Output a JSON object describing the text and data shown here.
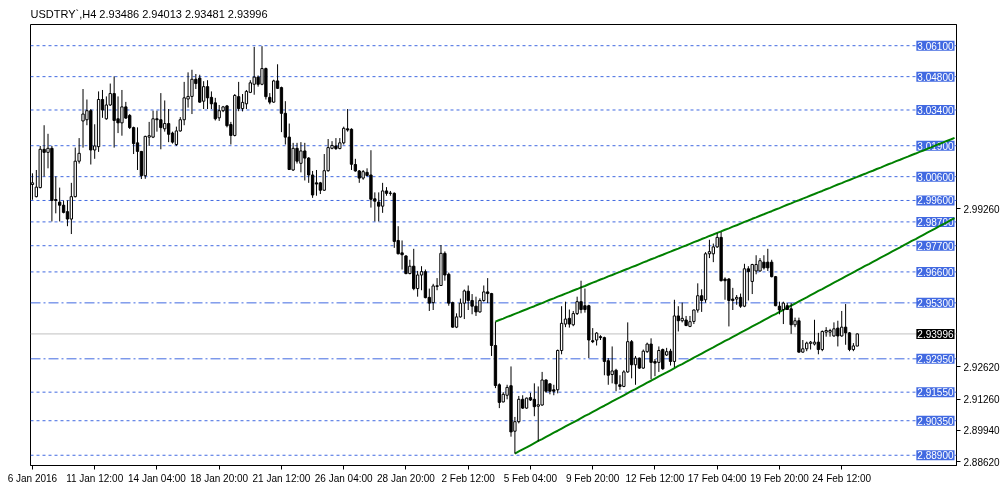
{
  "chart_data": {
    "type": "candlestick",
    "title": "USDTRY`,H4 2.93486 2.94013 2.93481 2.93996",
    "color": "#000000",
    "categories": [
      "6 Jan 2016",
      null,
      null,
      null,
      null,
      null,
      null,
      null,
      null,
      null,
      null,
      null,
      null,
      null,
      null,
      null,
      "11 Jan 12:00",
      null,
      null,
      null,
      null,
      null,
      null,
      null,
      null,
      null,
      null,
      null,
      null,
      null,
      null,
      null,
      "14 Jan 04:00",
      null,
      null,
      null,
      null,
      null,
      null,
      null,
      null,
      null,
      null,
      null,
      null,
      null,
      null,
      null,
      "18 Jan 20:00",
      null,
      null,
      null,
      null,
      null,
      null,
      null,
      null,
      null,
      null,
      null,
      null,
      null,
      null,
      null,
      "21 Jan 12:00",
      null,
      null,
      null,
      null,
      null,
      null,
      null,
      null,
      null,
      null,
      null,
      null,
      null,
      null,
      null,
      "26 Jan 04:00",
      null,
      null,
      null,
      null,
      null,
      null,
      null,
      null,
      null,
      null,
      null,
      null,
      null,
      null,
      null,
      "28 Jan 20:00",
      null,
      null,
      null,
      null,
      null,
      null,
      null,
      null,
      null,
      null,
      null,
      null,
      null,
      null,
      null,
      "2 Feb 12:00",
      null,
      null,
      null,
      null,
      null,
      null,
      null,
      null,
      null,
      null,
      null,
      null,
      null,
      null,
      null,
      "5 Feb 04:00",
      null,
      null,
      null,
      null,
      null,
      null,
      null,
      null,
      null,
      null,
      null,
      null,
      null,
      null,
      null,
      "9 Feb 20:00",
      null,
      null,
      null,
      null,
      null,
      null,
      null,
      null,
      null,
      null,
      null,
      null,
      null,
      null,
      null,
      "12 Feb 12:00",
      null,
      null,
      null,
      null,
      null,
      null,
      null,
      null,
      null,
      null,
      null,
      null,
      null,
      null,
      null,
      "17 Feb 04:00",
      null,
      null,
      null,
      null,
      null,
      null,
      null,
      null,
      null,
      null,
      null,
      null,
      null,
      null,
      null,
      "19 Feb 20:00",
      null,
      null,
      null,
      null,
      null,
      null,
      null,
      null,
      null,
      null,
      null,
      null,
      null,
      null,
      null,
      "24 Feb 12:00",
      null,
      null,
      null,
      null,
      null,
      null,
      null,
      null,
      null,
      null,
      null,
      null,
      null,
      null,
      null,
      null,
      null,
      null,
      null,
      null,
      null,
      null,
      null,
      null,
      null,
      null,
      null,
      null,
      null
    ],
    "ohlc": [
      [
        3.0027,
        3.0074,
        2.9963,
        3.0034
      ],
      [
        2.9976,
        3.0088,
        2.9973,
        3.0016
      ],
      [
        3.0014,
        3.0189,
        3.0011,
        3.0175
      ],
      [
        3.0175,
        3.0276,
        3.0061,
        3.0162
      ],
      [
        3.0162,
        3.024,
        3.0095,
        3.0179
      ],
      [
        3.0179,
        3.0189,
        2.9872,
        2.996
      ],
      [
        2.9964,
        3.0061,
        2.9906,
        2.996
      ],
      [
        2.9953,
        3.0014,
        2.9872,
        2.994
      ],
      [
        2.994,
        2.996,
        2.9906,
        2.991
      ],
      [
        2.9913,
        2.996,
        2.9852,
        2.9882
      ],
      [
        2.9882,
        3.0034,
        2.9819,
        2.9976
      ],
      [
        2.9976,
        3.0182,
        2.9973,
        3.0125
      ],
      [
        3.0125,
        3.0222,
        3.0115,
        3.0158
      ],
      [
        3.0294,
        3.0428,
        3.0182,
        3.0323
      ],
      [
        3.0299,
        3.0384,
        3.0276,
        3.0337
      ],
      [
        3.0337,
        3.0344,
        3.0111,
        3.0172
      ],
      [
        3.0172,
        3.028,
        3.0135,
        3.0189
      ],
      [
        3.0186,
        3.0418,
        3.0164,
        3.0384
      ],
      [
        3.0384,
        3.0424,
        3.0307,
        3.034
      ],
      [
        3.0303,
        3.0397,
        3.0299,
        3.0361
      ],
      [
        3.0361,
        3.0451,
        3.0357,
        3.0409
      ],
      [
        3.0409,
        3.0481,
        3.0182,
        3.0296
      ],
      [
        3.0303,
        3.0397,
        3.0243,
        3.0286
      ],
      [
        3.0286,
        3.0424,
        3.0232,
        3.0353
      ],
      [
        3.0353,
        3.0374,
        3.0303,
        3.0306
      ],
      [
        3.0317,
        3.0323,
        3.026,
        3.0266
      ],
      [
        3.0266,
        3.027,
        3.0155,
        3.0199
      ],
      [
        3.0202,
        3.0267,
        3.0088,
        3.0166
      ],
      [
        3.0166,
        3.0168,
        3.005,
        3.0064
      ],
      [
        3.0064,
        3.0232,
        3.0051,
        3.0229
      ],
      [
        3.0226,
        3.029,
        3.0189,
        3.0232
      ],
      [
        3.0226,
        3.0337,
        3.0222,
        3.0303
      ],
      [
        3.0303,
        3.0337,
        3.0249,
        3.0299
      ],
      [
        3.0299,
        3.0411,
        3.0175,
        3.0266
      ],
      [
        3.0261,
        3.038,
        3.0249,
        3.0283
      ],
      [
        3.0283,
        3.0344,
        3.0205,
        3.0238
      ],
      [
        3.0243,
        3.0249,
        3.0199,
        3.0205
      ],
      [
        3.0195,
        3.027,
        3.0189,
        3.0252
      ],
      [
        3.0252,
        3.031,
        3.0249,
        3.0299
      ],
      [
        3.0299,
        3.0458,
        3.0276,
        3.0391
      ],
      [
        3.0386,
        3.0498,
        3.035,
        3.0397
      ],
      [
        3.0397,
        3.0509,
        3.0323,
        3.0469
      ],
      [
        3.0469,
        3.0491,
        3.0428,
        3.0451
      ],
      [
        3.0474,
        3.0488,
        3.037,
        3.0373
      ],
      [
        3.0377,
        3.0461,
        3.0344,
        3.0438
      ],
      [
        3.0438,
        3.0465,
        3.0344,
        3.0391
      ],
      [
        3.0393,
        3.0418,
        3.0344,
        3.0366
      ],
      [
        3.037,
        3.0391,
        3.0296,
        3.0303
      ],
      [
        3.0307,
        3.0361,
        3.0294,
        3.0337
      ],
      [
        3.0337,
        3.0357,
        3.0331,
        3.0353
      ],
      [
        3.0357,
        3.0361,
        3.0267,
        3.0274
      ],
      [
        3.0279,
        3.029,
        3.0195,
        3.0233
      ],
      [
        3.0233,
        3.0407,
        3.0229,
        3.0401
      ],
      [
        3.0396,
        3.0458,
        3.0335,
        3.0346
      ],
      [
        3.0346,
        3.0407,
        3.0334,
        3.0372
      ],
      [
        3.0366,
        3.0424,
        3.0344,
        3.0418
      ],
      [
        3.0414,
        3.0465,
        3.0411,
        3.0454
      ],
      [
        3.0448,
        3.0605,
        3.0404,
        3.0478
      ],
      [
        3.0478,
        3.0485,
        3.0438,
        3.0448
      ],
      [
        3.0448,
        3.0608,
        3.0444,
        3.0514
      ],
      [
        3.0514,
        3.0518,
        3.0384,
        3.0396
      ],
      [
        3.0393,
        3.0411,
        3.0364,
        3.0373
      ],
      [
        3.0373,
        3.0467,
        3.037,
        3.0462
      ],
      [
        3.0462,
        3.0532,
        3.0428,
        3.0431
      ],
      [
        3.0434,
        3.0438,
        3.0247,
        3.0326
      ],
      [
        3.0326,
        3.0377,
        3.0195,
        3.0226
      ],
      [
        3.0226,
        3.0283,
        3.0088,
        3.009
      ],
      [
        3.0088,
        3.0202,
        3.0084,
        3.0179
      ],
      [
        3.0179,
        3.0202,
        3.0115,
        3.0125
      ],
      [
        3.0116,
        3.0205,
        3.0078,
        3.0168
      ],
      [
        3.0168,
        3.0202,
        3.0044,
        3.0138
      ],
      [
        3.0138,
        3.0142,
        3.0034,
        3.0067
      ],
      [
        3.0067,
        3.0084,
        2.9971,
        2.9983
      ],
      [
        3.0034,
        3.0088,
        2.998,
        3.0029
      ],
      [
        3.0034,
        3.0038,
        2.9987,
        3.0003
      ],
      [
        3.0003,
        3.0155,
        3.0,
        3.0085
      ],
      [
        3.0085,
        3.0218,
        3.0081,
        3.0182
      ],
      [
        3.0179,
        3.0209,
        3.0175,
        3.0191
      ],
      [
        3.0189,
        3.0222,
        3.0172,
        3.0178
      ],
      [
        3.0178,
        3.0222,
        3.0175,
        3.0202
      ],
      [
        3.0202,
        3.027,
        3.0195,
        3.0263
      ],
      [
        3.0261,
        3.0344,
        3.0249,
        3.0256
      ],
      [
        3.0259,
        3.0263,
        3.0088,
        3.0112
      ],
      [
        3.0111,
        3.0135,
        3.0081,
        3.0084
      ],
      [
        3.0084,
        3.0088,
        3.0034,
        3.0054
      ],
      [
        3.0054,
        3.0088,
        3.0047,
        3.0081
      ],
      [
        3.0078,
        3.0095,
        3.0061,
        3.0065
      ],
      [
        3.0067,
        3.0171,
        2.993,
        2.9965
      ],
      [
        2.9967,
        2.9994,
        2.9872,
        2.9957
      ],
      [
        2.9953,
        2.9994,
        2.9872,
        2.9936
      ],
      [
        2.9936,
        3.0034,
        2.9908,
        3.0
      ],
      [
        3.0,
        3.0016,
        2.998,
        2.999
      ],
      [
        2.9991,
        3.0,
        2.998,
        2.999
      ],
      [
        2.999,
        2.9994,
        2.9761,
        2.9788
      ],
      [
        2.9792,
        2.9852,
        2.9734,
        2.9736
      ],
      [
        2.974,
        2.9792,
        2.967,
        2.9732
      ],
      [
        2.9727,
        2.973,
        2.965,
        2.9653
      ],
      [
        2.9653,
        2.9711,
        2.965,
        2.9684
      ],
      [
        2.9684,
        2.9757,
        2.9583,
        2.959
      ],
      [
        2.959,
        2.9664,
        2.9556,
        2.9647
      ],
      [
        2.9647,
        2.9684,
        2.9583,
        2.9661
      ],
      [
        2.9661,
        2.967,
        2.9549,
        2.9552
      ],
      [
        2.9553,
        2.959,
        2.9496,
        2.9529
      ],
      [
        2.9531,
        2.961,
        2.95,
        2.9601
      ],
      [
        2.9599,
        2.9634,
        2.9583,
        2.9602
      ],
      [
        2.9603,
        2.9773,
        2.9601,
        2.9738
      ],
      [
        2.9738,
        2.9746,
        2.9623,
        2.9647
      ],
      [
        2.965,
        2.9657,
        2.9518,
        2.9529
      ],
      [
        2.9531,
        2.9535,
        2.9426,
        2.9428
      ],
      [
        2.9428,
        2.9486,
        2.9424,
        2.9471
      ],
      [
        2.9471,
        2.9548,
        2.9468,
        2.9529
      ],
      [
        2.9529,
        2.9586,
        2.9462,
        2.958
      ],
      [
        2.9579,
        2.9603,
        2.95,
        2.954
      ],
      [
        2.954,
        2.9567,
        2.9482,
        2.9516
      ],
      [
        2.9516,
        2.9556,
        2.9475,
        2.9492
      ],
      [
        2.9492,
        2.9549,
        2.9489,
        2.954
      ],
      [
        2.954,
        2.9603,
        2.9535,
        2.9576
      ],
      [
        2.9576,
        2.9634,
        2.9529,
        2.9569
      ],
      [
        2.9569,
        2.9572,
        2.9307,
        2.9351
      ],
      [
        2.9351,
        2.9451,
        2.9172,
        2.9183
      ],
      [
        2.9186,
        2.9192,
        2.9088,
        2.9112
      ],
      [
        2.9114,
        2.9155,
        2.9112,
        2.9146
      ],
      [
        2.9142,
        2.9186,
        2.9125,
        2.9175
      ],
      [
        2.9182,
        2.9263,
        2.8968,
        2.8988
      ],
      [
        2.8991,
        2.9051,
        2.8897,
        2.9031
      ],
      [
        2.9031,
        2.9139,
        2.9024,
        2.9125
      ],
      [
        2.9125,
        2.9142,
        2.9085,
        2.9088
      ],
      [
        2.9088,
        2.9132,
        2.9085,
        2.913
      ],
      [
        2.9132,
        2.9152,
        2.9118,
        2.9122
      ],
      [
        2.9125,
        2.9192,
        2.9054,
        2.9094
      ],
      [
        2.9096,
        2.9179,
        2.8948,
        2.9102
      ],
      [
        2.9101,
        2.924,
        2.9098,
        2.9206
      ],
      [
        2.9206,
        2.9209,
        2.9152,
        2.9159
      ],
      [
        2.919,
        2.9192,
        2.9146,
        2.9159
      ],
      [
        2.9165,
        2.9186,
        2.9142,
        2.9159
      ],
      [
        2.9165,
        2.9334,
        2.915,
        2.933
      ],
      [
        2.933,
        2.9516,
        2.9314,
        2.9444
      ],
      [
        2.9441,
        2.9535,
        2.9428,
        2.9462
      ],
      [
        2.9465,
        2.9502,
        2.9426,
        2.9441
      ],
      [
        2.9438,
        2.9496,
        2.9432,
        2.9485
      ],
      [
        2.9485,
        2.9556,
        2.9479,
        2.9535
      ],
      [
        2.9535,
        2.9623,
        2.9486,
        2.9502
      ],
      [
        2.9518,
        2.959,
        2.9489,
        2.9502
      ],
      [
        2.9518,
        2.9522,
        2.9298,
        2.9374
      ],
      [
        2.9371,
        2.9424,
        2.9361,
        2.9367
      ],
      [
        2.9374,
        2.9407,
        2.9351,
        2.9403
      ],
      [
        2.9388,
        2.9394,
        2.9374,
        2.9384
      ],
      [
        2.9384,
        2.9388,
        2.9226,
        2.9284
      ],
      [
        2.9287,
        2.9298,
        2.9186,
        2.9226
      ],
      [
        2.9229,
        2.9347,
        2.9192,
        2.9244
      ],
      [
        2.9247,
        2.9253,
        2.9159,
        2.919
      ],
      [
        2.9186,
        2.9226,
        2.9165,
        2.9179
      ],
      [
        2.9179,
        2.9247,
        2.9176,
        2.924
      ],
      [
        2.924,
        2.9448,
        2.9236,
        2.9367
      ],
      [
        2.9367,
        2.9374,
        2.9213,
        2.927
      ],
      [
        2.927,
        2.9307,
        2.9186,
        2.9298
      ],
      [
        2.9298,
        2.93,
        2.9253,
        2.9256
      ],
      [
        2.9256,
        2.9334,
        2.9253,
        2.9327
      ],
      [
        2.9325,
        2.9363,
        2.932,
        2.9357
      ],
      [
        2.9357,
        2.9381,
        2.9209,
        2.928
      ],
      [
        2.9284,
        2.9294,
        2.9222,
        2.9277
      ],
      [
        2.928,
        2.9347,
        2.924,
        2.933
      ],
      [
        2.9334,
        2.9338,
        2.9249,
        2.9253
      ],
      [
        2.9311,
        2.9341,
        2.9307,
        2.9325
      ],
      [
        2.9327,
        2.9337,
        2.9267,
        2.9284
      ],
      [
        2.9284,
        2.9543,
        2.926,
        2.9475
      ],
      [
        2.9475,
        2.9516,
        2.941,
        2.9455
      ],
      [
        2.9455,
        2.9531,
        2.9448,
        2.9465
      ],
      [
        2.9458,
        2.9475,
        2.9432,
        2.9435
      ],
      [
        2.9431,
        2.9475,
        2.9428,
        2.9451
      ],
      [
        2.9452,
        2.9502,
        2.9441,
        2.95
      ],
      [
        2.95,
        2.9612,
        2.9489,
        2.956
      ],
      [
        2.956,
        2.9587,
        2.9492,
        2.954
      ],
      [
        2.9543,
        2.9743,
        2.9531,
        2.9736
      ],
      [
        2.9736,
        2.9795,
        2.9718,
        2.9745
      ],
      [
        2.9736,
        2.9779,
        2.9701,
        2.9765
      ],
      [
        2.9765,
        2.9823,
        2.9761,
        2.9805
      ],
      [
        2.9805,
        2.9828,
        2.962,
        2.9623
      ],
      [
        2.963,
        2.9637,
        2.9543,
        2.9623
      ],
      [
        2.963,
        2.9634,
        2.9431,
        2.954
      ],
      [
        2.9546,
        2.9593,
        2.95,
        2.954
      ],
      [
        2.9546,
        2.9563,
        2.9522,
        2.9553
      ],
      [
        2.9553,
        2.9569,
        2.9509,
        2.9516
      ],
      [
        2.9516,
        2.9694,
        2.9512,
        2.9673
      ],
      [
        2.9673,
        2.9684,
        2.954,
        2.9661
      ],
      [
        2.962,
        2.9694,
        2.9567,
        2.9691
      ],
      [
        2.9664,
        2.973,
        2.965,
        2.9691
      ],
      [
        2.9664,
        2.9718,
        2.9661,
        2.9707
      ],
      [
        2.9701,
        2.973,
        2.967,
        2.9677
      ],
      [
        2.9701,
        2.9757,
        2.9664,
        2.9677
      ],
      [
        2.9701,
        2.9711,
        2.9637,
        2.964
      ],
      [
        2.964,
        2.9643,
        2.9516,
        2.9518
      ],
      [
        2.9516,
        2.9535,
        2.9482,
        2.95
      ],
      [
        2.9502,
        2.9535,
        2.9441,
        2.9529
      ],
      [
        2.9518,
        2.9529,
        2.95,
        2.9502
      ],
      [
        2.9505,
        2.9529,
        2.94,
        2.9438
      ],
      [
        2.9438,
        2.9468,
        2.9428,
        2.9455
      ],
      [
        2.9455,
        2.9468,
        2.9321,
        2.9323
      ],
      [
        2.9323,
        2.9374,
        2.9321,
        2.9337
      ],
      [
        2.9337,
        2.9367,
        2.9327,
        2.9361
      ],
      [
        2.936,
        2.937,
        2.9334,
        2.9365
      ],
      [
        2.9357,
        2.9459,
        2.9351,
        2.9365
      ],
      [
        2.9365,
        2.9404,
        2.9314,
        2.9334
      ],
      [
        2.9334,
        2.9414,
        2.9327,
        2.941
      ],
      [
        2.9407,
        2.9428,
        2.9388,
        2.9414
      ],
      [
        2.9407,
        2.9421,
        2.9388,
        2.9414
      ],
      [
        2.9391,
        2.9448,
        2.9388,
        2.9421
      ],
      [
        2.9424,
        2.9455,
        2.9347,
        2.9391
      ],
      [
        2.9391,
        2.9496,
        2.9388,
        2.9428
      ],
      [
        2.9428,
        2.9525,
        2.9354,
        2.9404
      ],
      [
        2.9404,
        2.9407,
        2.9327,
        2.9334
      ],
      [
        2.9334,
        2.9361,
        2.9327,
        2.9349
      ],
      [
        2.93486,
        2.94013,
        2.93481,
        2.93996
      ],
      null,
      null,
      null,
      null,
      null,
      null,
      null,
      null,
      null,
      null,
      null,
      null,
      null,
      null,
      null,
      null,
      null,
      null,
      null,
      null,
      null,
      null,
      null,
      null,
      null
    ],
    "series": [
      {
        "type": "line",
        "color": "#008000",
        "values": [
          null,
          null,
          null,
          null,
          null,
          null,
          null,
          null,
          null,
          null,
          null,
          null,
          null,
          null,
          null,
          null,
          null,
          null,
          null,
          null,
          null,
          null,
          null,
          null,
          null,
          null,
          null,
          null,
          null,
          null,
          null,
          null,
          null,
          null,
          null,
          null,
          null,
          null,
          null,
          null,
          null,
          null,
          null,
          null,
          null,
          null,
          null,
          null,
          null,
          null,
          null,
          null,
          null,
          null,
          null,
          null,
          null,
          null,
          null,
          null,
          null,
          null,
          null,
          null,
          null,
          null,
          null,
          null,
          null,
          null,
          null,
          null,
          null,
          null,
          null,
          null,
          null,
          null,
          null,
          null,
          null,
          null,
          null,
          null,
          null,
          null,
          null,
          null,
          null,
          null,
          null,
          null,
          null,
          null,
          null,
          null,
          null,
          null,
          null,
          null,
          null,
          null,
          null,
          null,
          null,
          null,
          null,
          null,
          null,
          null,
          null,
          null,
          null,
          null,
          null,
          null,
          null,
          null,
          null,
          2.9451,
          2.9458,
          2.9464,
          2.9471,
          2.9477,
          2.9484,
          2.949,
          2.9497,
          2.9503,
          2.951,
          2.9516,
          2.9523,
          2.9529,
          2.9536,
          2.9543,
          2.9549,
          2.9556,
          2.9562,
          2.9569,
          2.9575,
          2.9582,
          2.9588,
          2.9595,
          2.9601,
          2.9608,
          2.9615,
          2.9621,
          2.9628,
          2.9634,
          2.9641,
          2.9647,
          2.9654,
          2.966,
          2.9667,
          2.9673,
          2.968,
          2.9686,
          2.9693,
          2.97,
          2.9706,
          2.9713,
          2.9719,
          2.9726,
          2.9732,
          2.9739,
          2.9745,
          2.9752,
          2.9758,
          2.9765,
          2.9771,
          2.9778,
          2.9785,
          2.9791,
          2.9798,
          2.9804,
          2.9811,
          2.9817,
          2.9824,
          2.983,
          2.9837,
          2.9843,
          2.985,
          2.9856,
          2.9863,
          2.987,
          2.9876,
          2.9883,
          2.9889,
          2.9896,
          2.9902,
          2.9909,
          2.9915,
          2.9922,
          2.9928,
          2.9935,
          2.9942,
          2.9948,
          2.9955,
          2.9961,
          2.9968,
          2.9974,
          2.9981,
          2.9987,
          2.9994,
          3.0,
          3.0007,
          3.0013,
          3.002,
          3.0027,
          3.0033,
          3.004,
          3.0046,
          3.0053,
          3.0059,
          3.0066,
          3.0072,
          3.0079,
          3.0085,
          3.0092,
          3.0098,
          3.0105,
          3.0112,
          3.0118,
          3.0125,
          3.0131,
          3.0138,
          3.0144,
          3.0151,
          3.0157,
          3.0164,
          3.017,
          3.0177,
          3.0183,
          3.019,
          3.0197,
          3.0203,
          3.021,
          3.0216,
          3.0223
        ]
      },
      {
        "type": "line",
        "color": "#008000",
        "values": [
          null,
          null,
          null,
          null,
          null,
          null,
          null,
          null,
          null,
          null,
          null,
          null,
          null,
          null,
          null,
          null,
          null,
          null,
          null,
          null,
          null,
          null,
          null,
          null,
          null,
          null,
          null,
          null,
          null,
          null,
          null,
          null,
          null,
          null,
          null,
          null,
          null,
          null,
          null,
          null,
          null,
          null,
          null,
          null,
          null,
          null,
          null,
          null,
          null,
          null,
          null,
          null,
          null,
          null,
          null,
          null,
          null,
          null,
          null,
          null,
          null,
          null,
          null,
          null,
          null,
          null,
          null,
          null,
          null,
          null,
          null,
          null,
          null,
          null,
          null,
          null,
          null,
          null,
          null,
          null,
          null,
          null,
          null,
          null,
          null,
          null,
          null,
          null,
          null,
          null,
          null,
          null,
          null,
          null,
          null,
          null,
          null,
          null,
          null,
          null,
          null,
          null,
          null,
          null,
          null,
          null,
          null,
          null,
          null,
          null,
          null,
          null,
          null,
          null,
          null,
          null,
          null,
          null,
          null,
          null,
          null,
          null,
          null,
          null,
          2.8897,
          2.8906,
          2.8915,
          2.8923,
          2.8932,
          2.8941,
          2.895,
          2.8958,
          2.8967,
          2.8976,
          2.8985,
          2.8993,
          2.9002,
          2.9011,
          2.902,
          2.9028,
          2.9037,
          2.9046,
          2.9055,
          2.9063,
          2.9072,
          2.9081,
          2.909,
          2.9098,
          2.9107,
          2.9116,
          2.9125,
          2.9133,
          2.9142,
          2.9151,
          2.916,
          2.9168,
          2.9177,
          2.9186,
          2.9195,
          2.9203,
          2.9212,
          2.9221,
          2.923,
          2.9238,
          2.9247,
          2.9256,
          2.9265,
          2.9273,
          2.9282,
          2.9291,
          2.93,
          2.9308,
          2.9317,
          2.9326,
          2.9335,
          2.9343,
          2.9352,
          2.9361,
          2.937,
          2.9378,
          2.9387,
          2.9396,
          2.9405,
          2.9413,
          2.9422,
          2.9431,
          2.944,
          2.9448,
          2.9457,
          2.9466,
          2.9475,
          2.9483,
          2.9492,
          2.9501,
          2.951,
          2.9518,
          2.9527,
          2.9536,
          2.9545,
          2.9553,
          2.9562,
          2.9571,
          2.958,
          2.9588,
          2.9597,
          2.9606,
          2.9615,
          2.9623,
          2.9632,
          2.9641,
          2.965,
          2.9658,
          2.9667,
          2.9676,
          2.9685,
          2.9693,
          2.9702,
          2.9711,
          2.972,
          2.9728,
          2.9737,
          2.9746,
          2.9755,
          2.9763,
          2.9772,
          2.9781,
          2.979,
          2.9798,
          2.9807,
          2.9816,
          2.9825,
          2.9833,
          2.9842,
          2.9851,
          2.986,
          2.9868,
          2.9877,
          2.9886
        ]
      }
    ],
    "ylim": [
      2.8847,
      3.0699
    ],
    "yticks": [
      {
        "value": 2.9926,
        "label": "2.99260"
      },
      {
        "value": 2.9262,
        "label": "2.92620"
      },
      {
        "value": 2.9126,
        "label": "2.91260"
      },
      {
        "value": 2.8994,
        "label": "2.89940"
      },
      {
        "value": 2.8862,
        "label": "2.88620"
      }
    ],
    "ref_lines": [
      {
        "axis": "y",
        "value": 3.061,
        "label": "3.06100",
        "color": "#4169e1",
        "line_style": "dotted"
      },
      {
        "axis": "y",
        "value": 3.048,
        "label": "3.04800",
        "color": "#4169e1",
        "line_style": "dotted"
      },
      {
        "axis": "y",
        "value": 3.034,
        "label": "3.03400",
        "color": "#4169e1",
        "line_style": "dotted"
      },
      {
        "axis": "y",
        "value": 3.019,
        "label": "3.01900",
        "color": "#4169e1",
        "line_style": "dotted"
      },
      {
        "axis": "y",
        "value": 3.006,
        "label": "3.00600",
        "color": "#4169e1",
        "line_style": "dotted"
      },
      {
        "axis": "y",
        "value": 2.996,
        "label": "2.99600",
        "color": "#4169e1",
        "line_style": "dotted"
      },
      {
        "axis": "y",
        "value": 2.987,
        "label": "2.98700",
        "color": "#4169e1",
        "line_style": "dotted"
      },
      {
        "axis": "y",
        "value": 2.977,
        "label": "2.97700",
        "color": "#4169e1",
        "line_style": "dotted"
      },
      {
        "axis": "y",
        "value": 2.966,
        "label": "2.96600",
        "color": "#4169e1",
        "line_style": "dotted"
      },
      {
        "axis": "y",
        "value": 2.953,
        "label": "2.95300",
        "color": "#4169e1",
        "line_style": "dashdot"
      },
      {
        "axis": "y",
        "value": 2.93996,
        "label": "2.93996",
        "color": "#c0c0c0",
        "line_style": "solid"
      },
      {
        "axis": "y",
        "value": 2.9295,
        "label": "2.92950",
        "color": "#4169e1",
        "line_style": "dashdot"
      },
      {
        "axis": "y",
        "value": 2.9155,
        "label": "2.91550",
        "color": "#4169e1",
        "line_style": "dotted"
      },
      {
        "axis": "y",
        "value": 2.9035,
        "label": "2.90350",
        "color": "#4169e1",
        "line_style": "dotted"
      },
      {
        "axis": "y",
        "value": 2.889,
        "label": "2.88900",
        "color": "#4169e1",
        "line_style": "dotted"
      }
    ]
  }
}
